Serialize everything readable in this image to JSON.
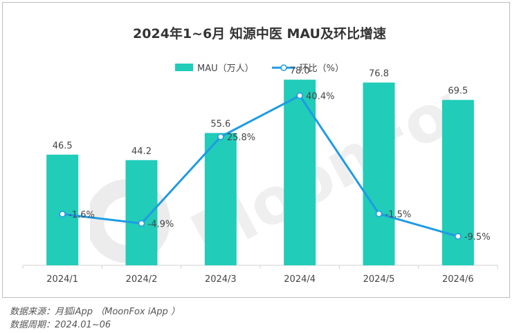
{
  "chart_data": {
    "type": "bar",
    "title": "2024年1~6月 知源中医 MAU及环比增速",
    "categories": [
      "2024/1",
      "2024/2",
      "2024/3",
      "2024/4",
      "2024/5",
      "2024/6"
    ],
    "series": [
      {
        "name": "MAU（万人）",
        "kind": "bar",
        "values": [
          46.5,
          44.2,
          55.6,
          78.0,
          76.8,
          69.5
        ],
        "labels": [
          "46.5",
          "44.2",
          "55.6",
          "78.0",
          "76.8",
          "69.5"
        ]
      },
      {
        "name": "环比（%）",
        "kind": "line",
        "values": [
          -1.6,
          -4.9,
          25.8,
          40.4,
          -1.5,
          -9.5
        ],
        "labels": [
          "-1.6%",
          "-4.9%",
          "25.8%",
          "40.4%",
          "-1.5%",
          "-9.5%"
        ]
      }
    ],
    "ylim_bar": [
      0,
      90
    ],
    "ylim_line": [
      -20,
      40
    ],
    "grid": false,
    "legend_position": "top-center"
  },
  "colors": {
    "bar": "#21ccb9",
    "line": "#1e9be3",
    "title": "#333333",
    "text": "#444444"
  },
  "watermark": "MoonFox",
  "footer": {
    "source": "数据来源：月狐iApp （MoonFox iApp ）",
    "period": "数据周期：2024.01~06"
  }
}
